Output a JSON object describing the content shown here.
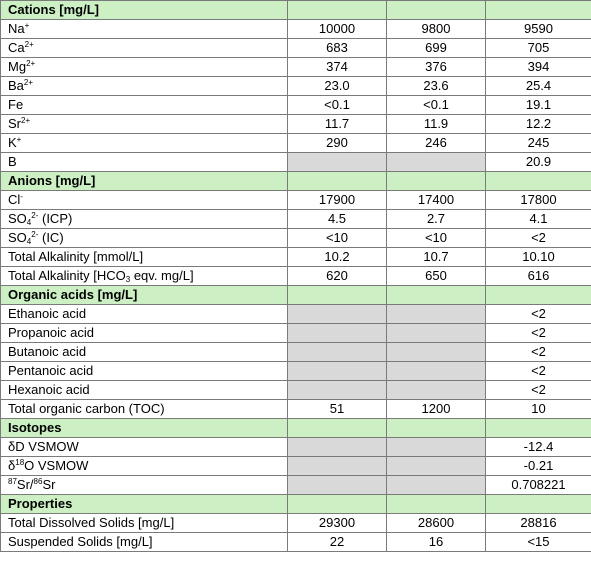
{
  "colors": {
    "section_bg": "#ccf0c4",
    "gray_cell": "#d9d9d9",
    "border": "#7a7a7a"
  },
  "rows": [
    {
      "type": "section",
      "label": "Cations [mg/L]"
    },
    {
      "type": "data",
      "label": [
        "Na",
        {
          "sup": "+"
        }
      ],
      "values": [
        "10000",
        "9800",
        "9590"
      ]
    },
    {
      "type": "data",
      "label": [
        "Ca",
        {
          "sup": "2+"
        }
      ],
      "values": [
        "683",
        "699",
        "705"
      ]
    },
    {
      "type": "data",
      "label": [
        "Mg",
        {
          "sup": "2+"
        }
      ],
      "values": [
        "374",
        "376",
        "394"
      ]
    },
    {
      "type": "data",
      "label": [
        "Ba",
        {
          "sup": "2+"
        }
      ],
      "values": [
        "23.0",
        "23.6",
        "25.4"
      ]
    },
    {
      "type": "data",
      "label": [
        "Fe"
      ],
      "values": [
        "<0.1",
        "<0.1",
        "19.1"
      ]
    },
    {
      "type": "data",
      "label": [
        "Sr",
        {
          "sup": "2+"
        }
      ],
      "values": [
        "11.7",
        "11.9",
        "12.2"
      ]
    },
    {
      "type": "data",
      "label": [
        "K",
        {
          "sup": "+"
        }
      ],
      "values": [
        "290",
        "246",
        "245"
      ]
    },
    {
      "type": "data",
      "label": [
        "B"
      ],
      "values": [
        null,
        null,
        "20.9"
      ]
    },
    {
      "type": "section",
      "label": "Anions [mg/L]"
    },
    {
      "type": "data",
      "label": [
        "Cl",
        {
          "sup": "-"
        }
      ],
      "values": [
        "17900",
        "17400",
        "17800"
      ]
    },
    {
      "type": "data",
      "label": [
        "SO",
        {
          "sub": "4"
        },
        {
          "sup": "2-"
        },
        " (ICP)"
      ],
      "values": [
        "4.5",
        "2.7",
        "4.1"
      ]
    },
    {
      "type": "data",
      "label": [
        "SO",
        {
          "sub": "4"
        },
        {
          "sup": "2-"
        },
        " (IC)"
      ],
      "values": [
        "<10",
        "<10",
        "<2"
      ]
    },
    {
      "type": "data",
      "label": [
        "Total Alkalinity [mmol/L]"
      ],
      "values": [
        "10.2",
        "10.7",
        "10.10"
      ]
    },
    {
      "type": "data",
      "label": [
        "Total Alkalinity [HCO",
        {
          "sub": "3"
        },
        " eqv. mg/L]"
      ],
      "values": [
        "620",
        "650",
        "616"
      ]
    },
    {
      "type": "section",
      "label": "Organic acids [mg/L]"
    },
    {
      "type": "data",
      "label": [
        "Ethanoic acid"
      ],
      "values": [
        null,
        null,
        "<2"
      ]
    },
    {
      "type": "data",
      "label": [
        "Propanoic acid"
      ],
      "values": [
        null,
        null,
        "<2"
      ]
    },
    {
      "type": "data",
      "label": [
        "Butanoic acid"
      ],
      "values": [
        null,
        null,
        "<2"
      ]
    },
    {
      "type": "data",
      "label": [
        "Pentanoic acid"
      ],
      "values": [
        null,
        null,
        "<2"
      ]
    },
    {
      "type": "data",
      "label": [
        "Hexanoic acid"
      ],
      "values": [
        null,
        null,
        "<2"
      ]
    },
    {
      "type": "data",
      "label": [
        "Total organic carbon (TOC)"
      ],
      "values": [
        "51",
        "1200",
        "10"
      ]
    },
    {
      "type": "section",
      "label": "Isotopes"
    },
    {
      "type": "data",
      "label": [
        "δD VSMOW"
      ],
      "values": [
        null,
        null,
        "-12.4"
      ]
    },
    {
      "type": "data",
      "label": [
        "δ",
        {
          "sup": "18"
        },
        "O VSMOW"
      ],
      "values": [
        null,
        null,
        "-0.21"
      ]
    },
    {
      "type": "data",
      "label": [
        {
          "sup": "87"
        },
        "Sr/",
        {
          "sup": "86"
        },
        "Sr"
      ],
      "values": [
        null,
        null,
        "0.708221"
      ]
    },
    {
      "type": "section",
      "label": "Properties"
    },
    {
      "type": "data",
      "label": [
        "Total Dissolved Solids [mg/L]"
      ],
      "values": [
        "29300",
        "28600",
        "28816"
      ]
    },
    {
      "type": "data",
      "label": [
        "Suspended Solids [mg/L]"
      ],
      "values": [
        "22",
        "16",
        "<15"
      ]
    }
  ]
}
